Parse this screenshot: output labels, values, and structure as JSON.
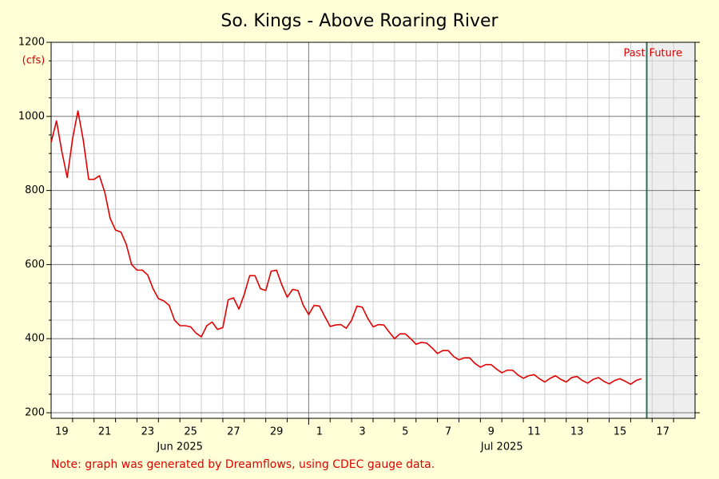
{
  "chart_data": {
    "type": "line",
    "title": "So. Kings - Above Roaring River",
    "ylabel": "(cfs)",
    "note": "Note: graph was generated by Dreamflows, using CDEC gauge data.",
    "annotations": [
      {
        "text": "Past"
      },
      {
        "text": "Future"
      }
    ],
    "now": "2025-07-16 18:00",
    "xlim": [
      "2025-06-19 00:00",
      "2025-07-19 00:00"
    ],
    "ylim": [
      185,
      1200
    ],
    "yticks": [
      200,
      400,
      600,
      800,
      1000,
      1200
    ],
    "y_minor_ticks": [
      250,
      300,
      350,
      450,
      500,
      550,
      650,
      700,
      750,
      850,
      900,
      950,
      1050,
      1100,
      1150
    ],
    "grid": true,
    "xticks": [
      {
        "value": "2025-06-19 12:00",
        "label": "19"
      },
      {
        "value": "2025-06-21 12:00",
        "label": "21"
      },
      {
        "value": "2025-06-23 12:00",
        "label": "23"
      },
      {
        "value": "2025-06-25 12:00",
        "label": "25"
      },
      {
        "value": "2025-06-27 12:00",
        "label": "27"
      },
      {
        "value": "2025-06-29 12:00",
        "label": "29"
      },
      {
        "value": "2025-07-01 12:00",
        "label": "1"
      },
      {
        "value": "2025-07-03 12:00",
        "label": "3"
      },
      {
        "value": "2025-07-05 12:00",
        "label": "5"
      },
      {
        "value": "2025-07-07 12:00",
        "label": "7"
      },
      {
        "value": "2025-07-09 12:00",
        "label": "9"
      },
      {
        "value": "2025-07-11 12:00",
        "label": "11"
      },
      {
        "value": "2025-07-13 12:00",
        "label": "13"
      },
      {
        "value": "2025-07-15 12:00",
        "label": "15"
      },
      {
        "value": "2025-07-17 12:00",
        "label": "17"
      }
    ],
    "month_labels": [
      {
        "value": "2025-06-25 00:00",
        "label": "Jun 2025"
      },
      {
        "value": "2025-07-10 00:00",
        "label": "Jul 2025"
      }
    ],
    "x_major_grid": [
      "2025-07-01 00:00"
    ],
    "x_minor_grid": [
      "2025-06-20 00:00",
      "2025-06-21 00:00",
      "2025-06-22 00:00",
      "2025-06-23 00:00",
      "2025-06-24 00:00",
      "2025-06-25 00:00",
      "2025-06-26 00:00",
      "2025-06-27 00:00",
      "2025-06-28 00:00",
      "2025-06-29 00:00",
      "2025-06-30 00:00",
      "2025-07-02 00:00",
      "2025-07-03 00:00",
      "2025-07-04 00:00",
      "2025-07-05 00:00",
      "2025-07-06 00:00",
      "2025-07-07 00:00",
      "2025-07-08 00:00",
      "2025-07-09 00:00",
      "2025-07-10 00:00",
      "2025-07-11 00:00",
      "2025-07-12 00:00",
      "2025-07-13 00:00",
      "2025-07-14 00:00",
      "2025-07-15 00:00",
      "2025-07-16 00:00",
      "2025-07-17 00:00",
      "2025-07-18 00:00"
    ],
    "x": [
      "2025-06-19 00:00",
      "2025-06-19 06:00",
      "2025-06-19 12:00",
      "2025-06-19 18:00",
      "2025-06-20 00:00",
      "2025-06-20 06:00",
      "2025-06-20 12:00",
      "2025-06-20 18:00",
      "2025-06-21 00:00",
      "2025-06-21 06:00",
      "2025-06-21 12:00",
      "2025-06-21 18:00",
      "2025-06-22 00:00",
      "2025-06-22 06:00",
      "2025-06-22 12:00",
      "2025-06-22 18:00",
      "2025-06-23 00:00",
      "2025-06-23 06:00",
      "2025-06-23 12:00",
      "2025-06-23 18:00",
      "2025-06-24 00:00",
      "2025-06-24 06:00",
      "2025-06-24 12:00",
      "2025-06-24 18:00",
      "2025-06-25 00:00",
      "2025-06-25 06:00",
      "2025-06-25 12:00",
      "2025-06-25 18:00",
      "2025-06-26 00:00",
      "2025-06-26 06:00",
      "2025-06-26 12:00",
      "2025-06-26 18:00",
      "2025-06-27 00:00",
      "2025-06-27 06:00",
      "2025-06-27 12:00",
      "2025-06-27 18:00",
      "2025-06-28 00:00",
      "2025-06-28 06:00",
      "2025-06-28 12:00",
      "2025-06-28 18:00",
      "2025-06-29 00:00",
      "2025-06-29 06:00",
      "2025-06-29 12:00",
      "2025-06-29 18:00",
      "2025-06-30 00:00",
      "2025-06-30 06:00",
      "2025-06-30 12:00",
      "2025-06-30 18:00",
      "2025-07-01 00:00",
      "2025-07-01 06:00",
      "2025-07-01 12:00",
      "2025-07-01 18:00",
      "2025-07-02 00:00",
      "2025-07-02 06:00",
      "2025-07-02 12:00",
      "2025-07-02 18:00",
      "2025-07-03 00:00",
      "2025-07-03 06:00",
      "2025-07-03 12:00",
      "2025-07-03 18:00",
      "2025-07-04 00:00",
      "2025-07-04 06:00",
      "2025-07-04 12:00",
      "2025-07-04 18:00",
      "2025-07-05 00:00",
      "2025-07-05 06:00",
      "2025-07-05 12:00",
      "2025-07-05 18:00",
      "2025-07-06 00:00",
      "2025-07-06 06:00",
      "2025-07-06 12:00",
      "2025-07-06 18:00",
      "2025-07-07 00:00",
      "2025-07-07 06:00",
      "2025-07-07 12:00",
      "2025-07-07 18:00",
      "2025-07-08 00:00",
      "2025-07-08 06:00",
      "2025-07-08 12:00",
      "2025-07-08 18:00",
      "2025-07-09 00:00",
      "2025-07-09 06:00",
      "2025-07-09 12:00",
      "2025-07-09 18:00",
      "2025-07-10 00:00",
      "2025-07-10 06:00",
      "2025-07-10 12:00",
      "2025-07-10 18:00",
      "2025-07-11 00:00",
      "2025-07-11 06:00",
      "2025-07-11 12:00",
      "2025-07-11 18:00",
      "2025-07-12 00:00",
      "2025-07-12 06:00",
      "2025-07-12 12:00",
      "2025-07-12 18:00",
      "2025-07-13 00:00",
      "2025-07-13 06:00",
      "2025-07-13 12:00",
      "2025-07-13 18:00",
      "2025-07-14 00:00",
      "2025-07-14 06:00",
      "2025-07-14 12:00",
      "2025-07-14 18:00",
      "2025-07-15 00:00",
      "2025-07-15 06:00",
      "2025-07-15 12:00",
      "2025-07-15 18:00",
      "2025-07-16 00:00",
      "2025-07-16 06:00",
      "2025-07-16 12:00"
    ],
    "series": [
      {
        "name": "Flow",
        "color": "#e00000",
        "values": [
          930,
          988,
          905,
          835,
          940,
          1015,
          935,
          830,
          830,
          840,
          795,
          725,
          693,
          688,
          655,
          600,
          585,
          585,
          572,
          535,
          508,
          502,
          490,
          450,
          435,
          435,
          432,
          415,
          405,
          435,
          445,
          425,
          430,
          505,
          510,
          480,
          520,
          570,
          570,
          535,
          530,
          582,
          585,
          545,
          512,
          533,
          530,
          490,
          465,
          490,
          488,
          460,
          433,
          437,
          438,
          428,
          450,
          488,
          485,
          455,
          432,
          438,
          437,
          418,
          400,
          413,
          413,
          400,
          385,
          390,
          388,
          375,
          360,
          368,
          368,
          352,
          343,
          348,
          348,
          333,
          323,
          330,
          330,
          318,
          308,
          315,
          315,
          302,
          293,
          300,
          303,
          292,
          283,
          293,
          300,
          290,
          283,
          295,
          298,
          287,
          280,
          290,
          295,
          285,
          278,
          287,
          292,
          285,
          277,
          287,
          292
        ]
      }
    ]
  }
}
